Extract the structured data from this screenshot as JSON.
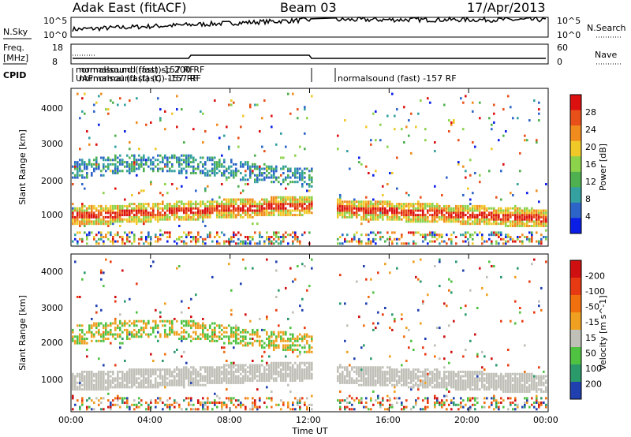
{
  "header": {
    "station": "Adak East (fitACF)",
    "beam": "Beam 03",
    "date": "17/Apr/2013"
  },
  "panels": {
    "nsky": {
      "label": "N.Sky",
      "right_label": "N.Search",
      "yticks": [
        "10^5",
        "10^0"
      ],
      "right_yticks": [
        "10^5",
        "10^0"
      ]
    },
    "freq": {
      "label_line1": "Freq.",
      "label_line2": "[MHz]",
      "right_label": "Nave",
      "yticks": [
        "18",
        "8"
      ],
      "right_yticks": [
        "60",
        "0"
      ]
    },
    "cpid": {
      "label": "CPID",
      "overlap_lines": [
        "normalsound (fast) -157 RF",
        "normalsound (fast)sp 200 RF",
        "UAFnormal (fast) (C) -157 RF"
      ],
      "right_text": "normalsound (fast) -157 RF"
    }
  },
  "chart_data": [
    {
      "type": "heatmap",
      "ylabel": "Slant Range [km]",
      "yticks": [
        "1000",
        "2000",
        "3000",
        "4000"
      ],
      "ylim": [
        200,
        4500
      ],
      "colorbar": {
        "label": "Power [dB]",
        "ticks": [
          "4",
          "8",
          "12",
          "16",
          "20",
          "24",
          "28"
        ],
        "colors": [
          "#0a1ee6",
          "#2c64c8",
          "#34a0a0",
          "#4eb04e",
          "#8cd24a",
          "#f0c828",
          "#f08c1e",
          "#e8501a",
          "#dd1010"
        ]
      }
    },
    {
      "type": "heatmap",
      "ylabel": "Slant Range [km]",
      "yticks": [
        "1000",
        "2000",
        "3000",
        "4000"
      ],
      "ylim": [
        200,
        4500
      ],
      "colorbar": {
        "label": "Velocity [m s^-1]",
        "ticks": [
          "200",
          "100",
          "50",
          "15",
          "-15",
          "-50",
          "-100",
          "-200"
        ],
        "colors": [
          "#2040b0",
          "#2a9a6a",
          "#4fc242",
          "#c0c0b8",
          "#f0a020",
          "#f07010",
          "#e83a12",
          "#d01010"
        ]
      }
    }
  ],
  "x_axis": {
    "label": "Time UT",
    "ticks": [
      "00:00",
      "04:00",
      "08:00",
      "12:00",
      "16:00",
      "20:00",
      "00:00"
    ]
  }
}
